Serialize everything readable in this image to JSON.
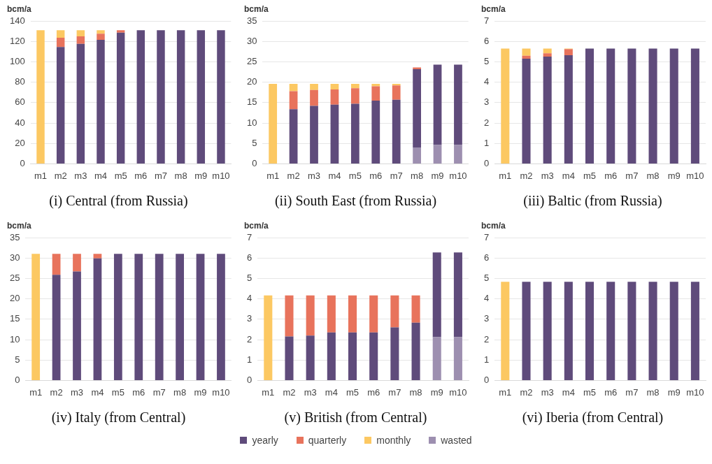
{
  "chart_data": [
    {
      "type": "bar",
      "title": "(i) Central (from Russia)",
      "ylabel": "bcm/a",
      "stacked": true,
      "grid": "y",
      "legend": "bottom",
      "categories": [
        "m1",
        "m2",
        "m3",
        "m4",
        "m5",
        "m6",
        "m7",
        "m8",
        "m9",
        "m10"
      ],
      "ylim": [
        0,
        140
      ],
      "yticks": [
        0,
        20,
        40,
        60,
        80,
        100,
        120,
        140
      ],
      "series": [
        {
          "name": "yearly",
          "color": "#5f4b7b",
          "values": [
            null,
            114.5,
            117.5,
            121.5,
            128.5,
            131,
            131,
            131,
            131,
            131
          ]
        },
        {
          "name": "quarterly",
          "color": "#e8735c",
          "values": [
            null,
            9,
            7.5,
            6,
            2.5,
            null,
            null,
            null,
            null,
            null
          ]
        },
        {
          "name": "monthly",
          "color": "#fcc862",
          "values": [
            131,
            7.5,
            6,
            3.5,
            null,
            null,
            null,
            null,
            null,
            null
          ]
        }
      ]
    },
    {
      "type": "bar",
      "title": "(ii) South East (from Russia)",
      "ylabel": "bcm/a",
      "stacked": true,
      "grid": "y",
      "legend": "bottom",
      "categories": [
        "m1",
        "m2",
        "m3",
        "m4",
        "m5",
        "m6",
        "m7",
        "m8",
        "m9",
        "m10"
      ],
      "ylim": [
        0,
        35
      ],
      "yticks": [
        0,
        5,
        10,
        15,
        20,
        25,
        30,
        35
      ],
      "series": [
        {
          "name": "wasted",
          "color": "#9d8fb0",
          "values": [
            null,
            null,
            null,
            null,
            null,
            null,
            null,
            4.0,
            4.6,
            4.6
          ]
        },
        {
          "color": "#5f4b7b",
          "values": [
            null,
            13.4,
            14.2,
            14.5,
            14.7,
            15.5,
            15.7,
            19.2,
            19.7,
            19.7
          ]
        },
        {
          "color": "#e8735c",
          "values": [
            null,
            4.4,
            3.9,
            3.7,
            3.8,
            3.5,
            3.5,
            0.4,
            null,
            null
          ]
        },
        {
          "color": "#fcc862",
          "values": [
            19.6,
            1.8,
            1.5,
            1.4,
            1.1,
            0.6,
            0.4,
            null,
            null,
            null
          ]
        }
      ]
    },
    {
      "type": "bar",
      "title": "(iii) Baltic (from Russia)",
      "ylabel": "bcm/a",
      "stacked": true,
      "grid": "y",
      "categories": [
        "m1",
        "m2",
        "m3",
        "m4",
        "m5",
        "m6",
        "m7",
        "m8",
        "m9",
        "m10"
      ],
      "ylim": [
        0,
        7
      ],
      "yticks": [
        0,
        1,
        2,
        3,
        4,
        5,
        6,
        7
      ],
      "series": [
        {
          "color": "#5f4b7b",
          "values": [
            null,
            5.15,
            5.25,
            5.32,
            5.65,
            5.65,
            5.65,
            5.65,
            5.65,
            5.65
          ]
        },
        {
          "color": "#e8735c",
          "values": [
            null,
            0.15,
            0.17,
            0.3,
            null,
            null,
            null,
            null,
            null,
            null
          ]
        },
        {
          "color": "#fcc862",
          "values": [
            5.65,
            0.35,
            0.23,
            0.03,
            null,
            null,
            null,
            null,
            null,
            null
          ]
        }
      ]
    },
    {
      "type": "bar",
      "title": "(iv) Italy (from Central)",
      "ylabel": "bcm/a",
      "stacked": true,
      "grid": "y",
      "categories": [
        "m1",
        "m2",
        "m3",
        "m4",
        "m5",
        "m6",
        "m7",
        "m8",
        "m9",
        "m10"
      ],
      "ylim": [
        0,
        35
      ],
      "yticks": [
        0,
        5,
        10,
        15,
        20,
        25,
        30,
        35
      ],
      "series": [
        {
          "color": "#5f4b7b",
          "values": [
            null,
            25.9,
            26.7,
            29.9,
            31,
            31,
            31,
            31,
            31,
            31
          ]
        },
        {
          "color": "#e8735c",
          "values": [
            null,
            5.1,
            4.3,
            1.1,
            null,
            null,
            null,
            null,
            null,
            null
          ]
        },
        {
          "color": "#fcc862",
          "values": [
            31,
            null,
            null,
            null,
            null,
            null,
            null,
            null,
            null,
            null
          ]
        }
      ]
    },
    {
      "type": "bar",
      "title": "(v) British (from Central)",
      "ylabel": "bcm/a",
      "stacked": true,
      "grid": "y",
      "categories": [
        "m1",
        "m2",
        "m3",
        "m4",
        "m5",
        "m6",
        "m7",
        "m8",
        "m9",
        "m10"
      ],
      "ylim": [
        0,
        7
      ],
      "yticks": [
        0,
        1,
        2,
        3,
        4,
        5,
        6,
        7
      ],
      "series": [
        {
          "color": "#9d8fb0",
          "values": [
            null,
            null,
            null,
            null,
            null,
            null,
            null,
            null,
            2.12,
            2.12
          ]
        },
        {
          "color": "#5f4b7b",
          "values": [
            null,
            2.15,
            2.2,
            2.35,
            2.35,
            2.35,
            2.6,
            2.83,
            4.15,
            4.15
          ]
        },
        {
          "color": "#e8735c",
          "values": [
            null,
            2.02,
            1.97,
            1.82,
            1.82,
            1.82,
            1.57,
            1.34,
            null,
            null
          ]
        },
        {
          "color": "#fcc862",
          "values": [
            4.17,
            null,
            null,
            null,
            null,
            null,
            null,
            null,
            null,
            null
          ]
        }
      ]
    },
    {
      "type": "bar",
      "title": "(vi) Iberia (from Central)",
      "ylabel": "bcm/a",
      "stacked": true,
      "grid": "y",
      "categories": [
        "m1",
        "m2",
        "m3",
        "m4",
        "m5",
        "m6",
        "m7",
        "m8",
        "m9",
        "m10"
      ],
      "ylim": [
        0,
        7
      ],
      "yticks": [
        0,
        1,
        2,
        3,
        4,
        5,
        6,
        7
      ],
      "series": [
        {
          "color": "#5f4b7b",
          "values": [
            null,
            4.83,
            4.83,
            4.83,
            4.83,
            4.83,
            4.83,
            4.83,
            4.83,
            4.83
          ]
        },
        {
          "color": "#fcc862",
          "values": [
            4.83,
            null,
            null,
            null,
            null,
            null,
            null,
            null,
            null,
            null
          ]
        }
      ]
    }
  ]
}
